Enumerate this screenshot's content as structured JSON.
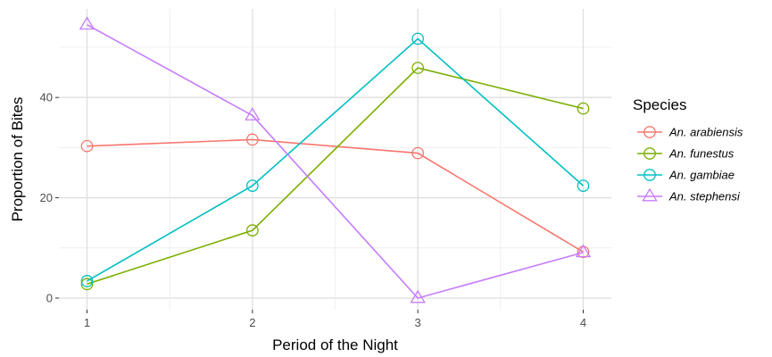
{
  "chart_data": {
    "type": "line",
    "title": "",
    "xlabel": "Period of the Night",
    "ylabel": "Proportion of Bites",
    "x": [
      1,
      2,
      3,
      4
    ],
    "xticks": [
      "1",
      "2",
      "3",
      "4"
    ],
    "yticks": [
      "0",
      "20",
      "40"
    ],
    "ylim": [
      0,
      55
    ],
    "grid": true,
    "legend": {
      "title": "Species",
      "placement": "right"
    },
    "series": [
      {
        "name": "An. arabiensis",
        "color": "#F8766D",
        "marker": "circle",
        "values": [
          30.3,
          31.6,
          28.9,
          9.2
        ]
      },
      {
        "name": "An. funestus",
        "color": "#7CAE00",
        "marker": "circle",
        "values": [
          2.8,
          13.5,
          45.9,
          37.8
        ]
      },
      {
        "name": "An. gambiae",
        "color": "#00BFC4",
        "marker": "circle",
        "values": [
          3.4,
          22.4,
          51.7,
          22.4
        ]
      },
      {
        "name": "An. stephensi",
        "color": "#C77CFF",
        "marker": "triangle",
        "values": [
          54.5,
          36.4,
          0.0,
          9.1
        ]
      }
    ]
  }
}
